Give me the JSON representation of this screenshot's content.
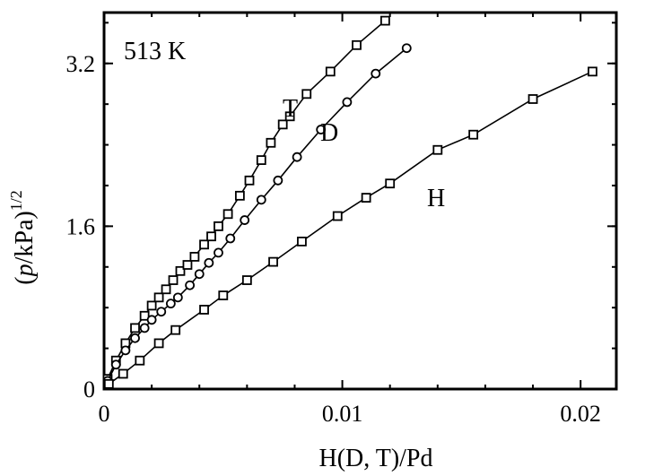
{
  "chart_data": {
    "type": "scatter",
    "title": "",
    "annotation": "513 K",
    "xlabel": "H(D, T)/Pd",
    "ylabel_parts": [
      "(",
      "p",
      "/kPa)",
      "1/2"
    ],
    "xlim": [
      0,
      0.0215
    ],
    "ylim": [
      0,
      3.7
    ],
    "xticks": [
      0,
      0.01,
      0.02
    ],
    "xtick_labels": [
      "0",
      "0.01",
      "0.02"
    ],
    "yticks": [
      0,
      1.6,
      3.2
    ],
    "ytick_labels": [
      "0",
      "1.6",
      "3.2"
    ],
    "grid": false,
    "series": [
      {
        "name": "T",
        "marker": "square",
        "x": [
          0.00015,
          0.0005,
          0.0009,
          0.0013,
          0.0017,
          0.002,
          0.0023,
          0.0026,
          0.0029,
          0.0032,
          0.0035,
          0.0038,
          0.0042,
          0.0045,
          0.0048,
          0.0052,
          0.0057,
          0.0061,
          0.0066,
          0.007,
          0.0075,
          0.0078,
          0.0085,
          0.0095,
          0.0106,
          0.0118
        ],
        "y": [
          0.1,
          0.28,
          0.45,
          0.6,
          0.72,
          0.82,
          0.9,
          0.98,
          1.07,
          1.16,
          1.22,
          1.3,
          1.42,
          1.5,
          1.6,
          1.72,
          1.9,
          2.05,
          2.25,
          2.42,
          2.6,
          2.68,
          2.9,
          3.12,
          3.38,
          3.62
        ]
      },
      {
        "name": "D",
        "marker": "circle",
        "x": [
          0.00015,
          0.0005,
          0.0009,
          0.0013,
          0.0017,
          0.002,
          0.0024,
          0.0028,
          0.0031,
          0.0036,
          0.004,
          0.0044,
          0.0048,
          0.0053,
          0.0059,
          0.0066,
          0.0073,
          0.0081,
          0.0091,
          0.0102,
          0.0114,
          0.0127
        ],
        "y": [
          0.08,
          0.24,
          0.38,
          0.5,
          0.6,
          0.68,
          0.76,
          0.84,
          0.9,
          1.02,
          1.13,
          1.24,
          1.34,
          1.48,
          1.66,
          1.86,
          2.05,
          2.28,
          2.55,
          2.82,
          3.1,
          3.35
        ]
      },
      {
        "name": "H",
        "marker": "square",
        "x": [
          0.0002,
          0.0008,
          0.0015,
          0.0023,
          0.003,
          0.0042,
          0.005,
          0.006,
          0.0071,
          0.0083,
          0.0098,
          0.011,
          0.012,
          0.014,
          0.0155,
          0.018,
          0.0205
        ],
        "y": [
          0.05,
          0.15,
          0.28,
          0.45,
          0.58,
          0.78,
          0.92,
          1.07,
          1.25,
          1.45,
          1.7,
          1.88,
          2.02,
          2.35,
          2.5,
          2.85,
          3.12
        ]
      }
    ]
  }
}
